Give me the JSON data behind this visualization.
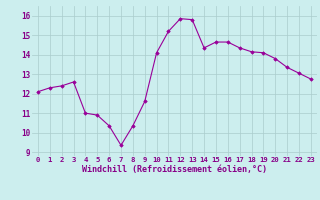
{
  "x_data": [
    0,
    1,
    2,
    3,
    4,
    5,
    6,
    7,
    8,
    9,
    10,
    11,
    12,
    13,
    14,
    15,
    16,
    17,
    18,
    19,
    20,
    21,
    22,
    23
  ],
  "y_data": [
    12.1,
    12.3,
    12.4,
    12.6,
    11.0,
    10.9,
    10.35,
    9.35,
    10.35,
    11.6,
    14.1,
    15.2,
    15.85,
    15.8,
    14.35,
    14.65,
    14.65,
    14.35,
    14.15,
    14.1,
    13.8,
    13.35,
    13.05,
    12.75
  ],
  "line_color": "#990099",
  "marker_color": "#990099",
  "bg_color": "#cceeee",
  "grid_color": "#aacccc",
  "xlabel": "Windchill (Refroidissement éolien,°C)",
  "ylabel": "",
  "xlim": [
    -0.5,
    23.5
  ],
  "ylim": [
    8.8,
    16.5
  ],
  "yticks": [
    9,
    10,
    11,
    12,
    13,
    14,
    15,
    16
  ],
  "xticks": [
    0,
    1,
    2,
    3,
    4,
    5,
    6,
    7,
    8,
    9,
    10,
    11,
    12,
    13,
    14,
    15,
    16,
    17,
    18,
    19,
    20,
    21,
    22,
    23
  ],
  "xlabel_color": "#880088",
  "tick_color": "#880088",
  "tick_fontsize": 5.2,
  "xlabel_fontsize": 6.0,
  "figsize": [
    3.2,
    2.0
  ],
  "dpi": 100
}
